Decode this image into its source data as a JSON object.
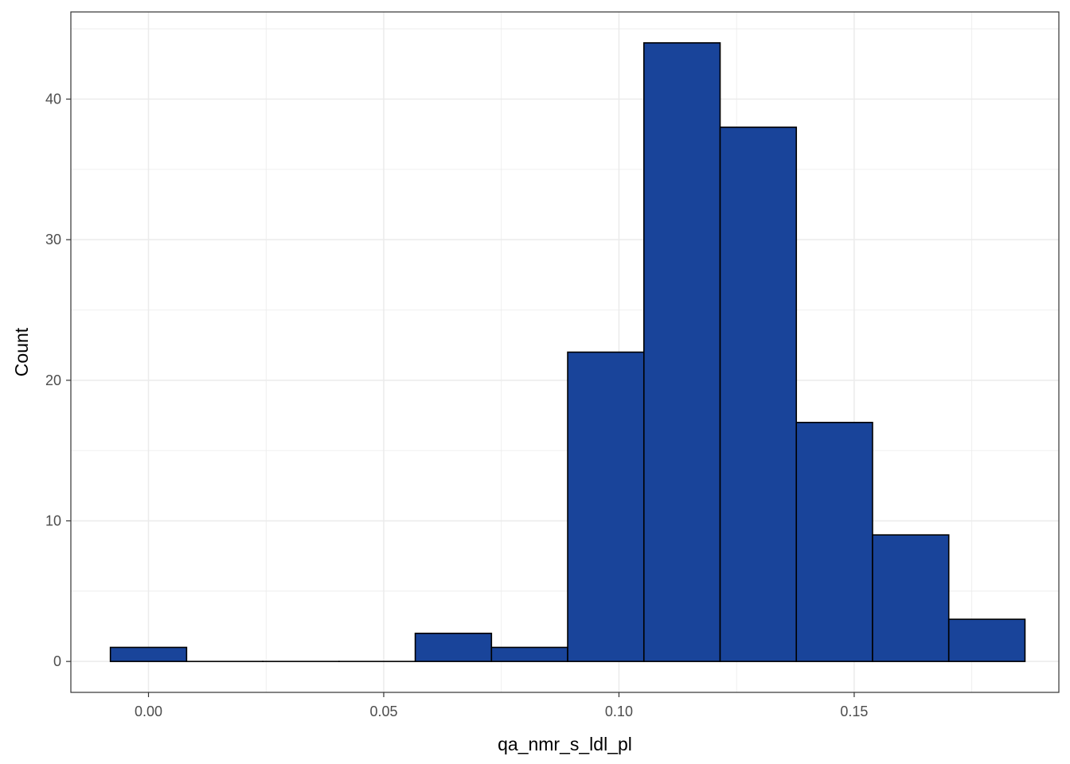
{
  "chart_data": {
    "type": "bar",
    "subtype": "histogram",
    "xlabel": "qa_nmr_s_ldl_pl",
    "ylabel": "Count",
    "xlim": [
      -0.0165,
      0.1935
    ],
    "ylim": [
      -2.2,
      46.2
    ],
    "x_ticks": [
      {
        "value": 0.0,
        "label": "0.00"
      },
      {
        "value": 0.05,
        "label": "0.05"
      },
      {
        "value": 0.1,
        "label": "0.10"
      },
      {
        "value": 0.15,
        "label": "0.15"
      }
    ],
    "y_ticks": [
      {
        "value": 0,
        "label": "0"
      },
      {
        "value": 10,
        "label": "10"
      },
      {
        "value": 20,
        "label": "20"
      },
      {
        "value": 30,
        "label": "30"
      },
      {
        "value": 40,
        "label": "40"
      }
    ],
    "bin_edges": [
      -0.0081,
      0.0081,
      0.0243,
      0.0405,
      0.0567,
      0.0729,
      0.0891,
      0.1053,
      0.1215,
      0.1377,
      0.1539,
      0.1701,
      0.1863
    ],
    "counts": [
      1,
      0,
      0,
      0,
      2,
      1,
      22,
      44,
      38,
      17,
      9,
      3
    ],
    "grid": true,
    "legend": "none",
    "colors": {
      "bar_fill": "#19449a",
      "bar_stroke": "#000000",
      "grid": "#ebebeb",
      "panel_border": "#333333"
    }
  }
}
